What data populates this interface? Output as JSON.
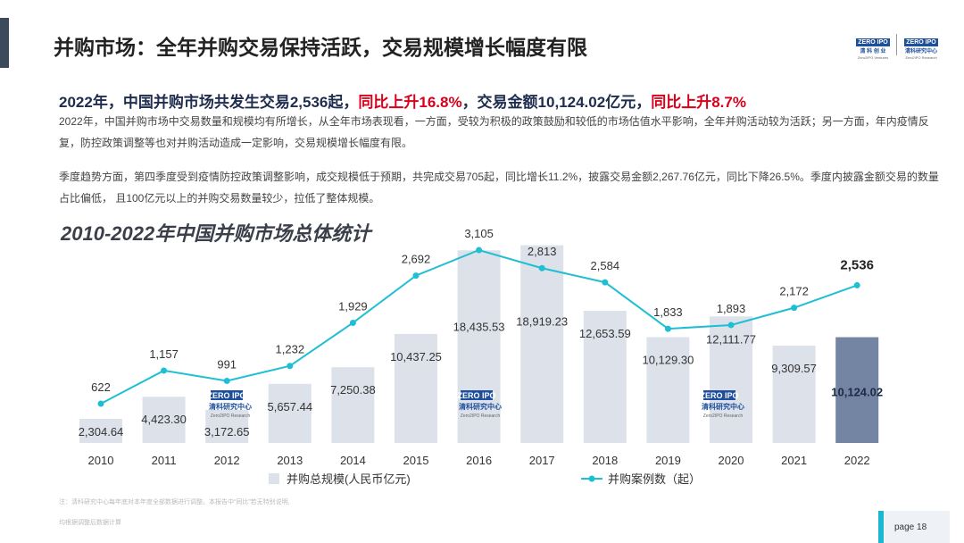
{
  "header": {
    "title": "并购市场：全年并购交易保持活跃，交易规模增长幅度有限",
    "logo_left": {
      "badge": "ZERO IPO",
      "cn": "清 科 创 业",
      "en": "Zero2IPO Ventures"
    },
    "logo_right": {
      "badge": "ZERO IPO",
      "cn": "清科研究中心",
      "en": "Zero2IPO Research"
    }
  },
  "headline": {
    "part1": "2022年，中国并购市场共发生交易2,536起，",
    "part2": "同比上升16.8%",
    "part3": "，交易金额10,124.02亿元，",
    "part4": "同比上升8.7%"
  },
  "paragraphs": {
    "p1": "2022年，中国并购市场中交易数量和规模均有所增长，从全年市场表现看，一方面，受较为积极的政策鼓励和较低的市场估值水平影响，全年并购活动较为活跃；另一方面，年内疫情反复，防控政策调整等也对并购活动造成一定影响，交易规模增长幅度有限。",
    "p2": "季度趋势方面，第四季度受到疫情防控政策调整影响，成交规模低于预期，共完成交易705起，同比增长11.2%，披露交易金额2,267.76亿元，同比下降26.5%。季度内披露金额交易的数量占比偏低， 且100亿元以上的并购交易数量较少，拉低了整体规模。"
  },
  "chart_title": "2010-2022年中国并购市场总体统计",
  "chart_data": {
    "type": "bar",
    "title": "2010-2022年中国并购市场总体统计",
    "categories": [
      "2010",
      "2011",
      "2012",
      "2013",
      "2014",
      "2015",
      "2016",
      "2017",
      "2018",
      "2019",
      "2020",
      "2021",
      "2022"
    ],
    "series": [
      {
        "name": "并购总规模(人民币亿元)",
        "type": "bar",
        "axis": "left",
        "values": [
          2304.64,
          4423.3,
          3172.65,
          5657.44,
          7250.38,
          10437.25,
          18435.53,
          18919.23,
          12653.59,
          10129.3,
          12111.77,
          9309.57,
          10124.02
        ],
        "labels": [
          "2,304.64",
          "4,423.30",
          "3,172.65",
          "5,657.44",
          "7,250.38",
          "10,437.25",
          "18,435.53",
          "18,919.23",
          "12,653.59",
          "10,129.30",
          "12,111.77",
          "9,309.57",
          "10,124.02"
        ],
        "color": "#dde1ea",
        "highlight_color": "#7485a3"
      },
      {
        "name": "并购案例数（起）",
        "type": "line",
        "axis": "right",
        "values": [
          622,
          1157,
          991,
          1232,
          1929,
          2692,
          3105,
          2813,
          2584,
          1833,
          1893,
          2172,
          2536
        ],
        "labels": [
          "622",
          "1,157",
          "991",
          "1,232",
          "1,929",
          "2,692",
          "3,105",
          "2,813",
          "2,584",
          "1,833",
          "1,893",
          "2,172",
          "2,536"
        ],
        "color": "#1fbfd3"
      }
    ],
    "legend_position": "bottom",
    "grid": false,
    "ylim_left": [
      0,
      20000
    ],
    "ylim_right": [
      0,
      3200
    ]
  },
  "watermark_text": {
    "badge": "ZERO IPO",
    "cn": "清科研究中心",
    "en": "Zero2IPO Research"
  },
  "footnotes": {
    "f1": "注：清科研究中心每年底对本年度全部数据进行调整。本报告中“同比”若无特别说明,",
    "f2": "均根据调整后数据计算"
  },
  "page": {
    "label": "page 18"
  }
}
